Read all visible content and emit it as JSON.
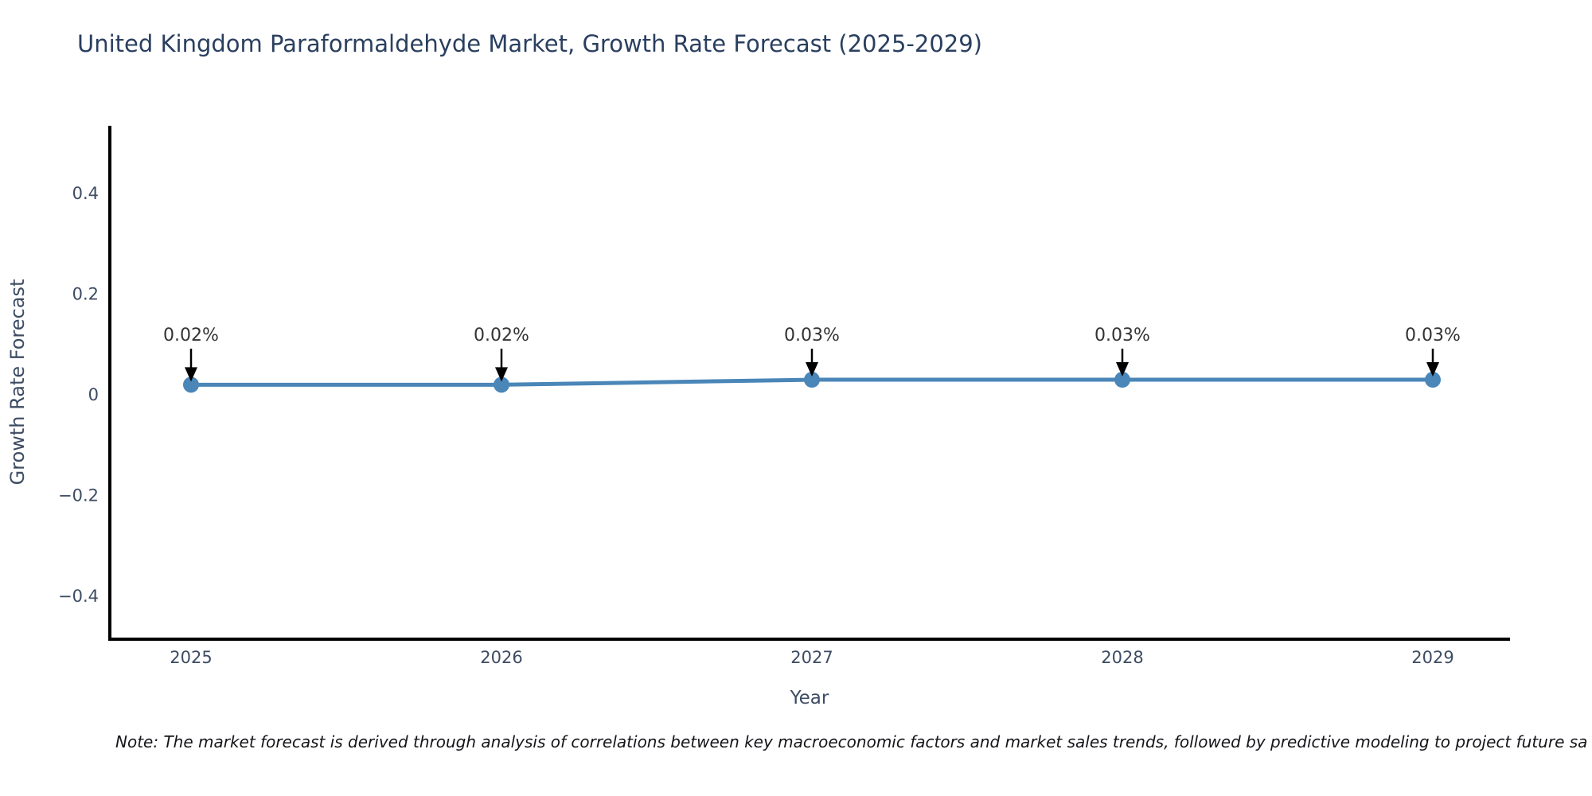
{
  "title": "United Kingdom Paraformaldehyde Market, Growth Rate Forecast (2025-2029)",
  "note": "Note: The market forecast is derived through analysis of correlations between key macroeconomic factors and market sales trends, followed by predictive modeling to project future sa",
  "chart_data": {
    "type": "line",
    "title": "United Kingdom Paraformaldehyde Market, Growth Rate Forecast (2025-2029)",
    "xlabel": "Year",
    "ylabel": "Growth Rate Forecast",
    "categories": [
      2025,
      2026,
      2027,
      2028,
      2029
    ],
    "series": [
      {
        "name": "Growth Rate Forecast",
        "values": [
          0.02,
          0.02,
          0.03,
          0.03,
          0.03
        ]
      }
    ],
    "point_labels": [
      "0.02%",
      "0.02%",
      "0.03%",
      "0.03%",
      "0.03%"
    ],
    "yticks": [
      0.4,
      0.2,
      0,
      -0.2,
      -0.4
    ],
    "ytick_labels": [
      "0.4",
      "0.2",
      "0",
      "−0.2",
      "−0.4"
    ],
    "xtick_labels": [
      "2025",
      "2026",
      "2027",
      "2028",
      "2029"
    ],
    "ylim": [
      -0.49,
      0.53
    ],
    "grid": false,
    "legend": "none",
    "colors": {
      "line": "#4a86b8",
      "marker": "#4a86b8",
      "axis": "#000000",
      "tick_text": "#3d4c63",
      "annotation_text": "#333333",
      "annotation_arrow": "#000000",
      "title_text": "#2a3f5f"
    }
  }
}
